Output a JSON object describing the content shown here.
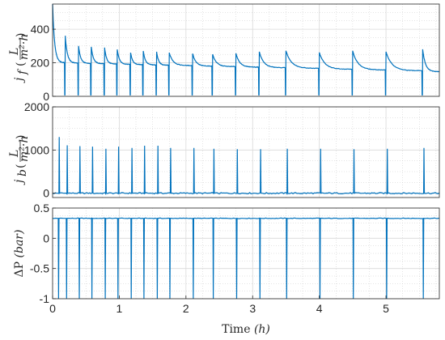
{
  "chart_data": [
    {
      "type": "line",
      "ylabel": "j_f (L/(m²·h))",
      "ylabel_main": "j",
      "ylabel_sub": "f",
      "ylabel_units_num": "L",
      "ylabel_units_den": "m²·h",
      "ylim": [
        0,
        550
      ],
      "yticks": [
        0,
        200,
        400
      ],
      "xlim": [
        0,
        5.8
      ],
      "grid": true,
      "line_color": "#0072BD",
      "cycle_starts": [
        0,
        0.19,
        0.39,
        0.58,
        0.78,
        0.97,
        1.17,
        1.36,
        1.56,
        1.75,
        2.1,
        2.4,
        2.75,
        3.1,
        3.5,
        4.0,
        4.5,
        5.0,
        5.55
      ],
      "cycle_peaks": [
        550,
        360,
        300,
        295,
        290,
        280,
        260,
        270,
        265,
        260,
        255,
        250,
        255,
        265,
        270,
        260,
        270,
        265,
        280
      ],
      "baseline_start": 200,
      "baseline_end": 145
    },
    {
      "type": "line",
      "ylabel": "j_b (L/(m²·h))",
      "ylabel_main": "j",
      "ylabel_sub": "b",
      "ylabel_units_num": "L",
      "ylabel_units_den": "m²·h",
      "ylim": [
        -100,
        2000
      ],
      "yticks": [
        0,
        1000,
        2000
      ],
      "xlim": [
        0,
        5.8
      ],
      "grid": true,
      "line_color": "#0072BD",
      "spike_times": [
        0.1,
        0.22,
        0.41,
        0.6,
        0.8,
        0.99,
        1.19,
        1.38,
        1.58,
        1.77,
        2.12,
        2.42,
        2.77,
        3.12,
        3.52,
        4.02,
        4.52,
        5.02,
        5.57
      ],
      "spike_values": [
        1300,
        1110,
        1090,
        1080,
        1030,
        1080,
        1050,
        1100,
        1100,
        1050,
        1050,
        1030,
        1020,
        1020,
        1030,
        1030,
        1020,
        1030,
        1050
      ],
      "baseline": 0
    },
    {
      "type": "line",
      "ylabel": "ΔP (bar)",
      "ylabel_main": "ΔP",
      "ylabel_units": "bar",
      "ylim": [
        -1,
        0.5
      ],
      "yticks": [
        -1,
        -0.5,
        0,
        0.5
      ],
      "xlim": [
        0,
        5.8
      ],
      "xticks": [
        0,
        1,
        2,
        3,
        4,
        5
      ],
      "xlabel": "Time",
      "xlabel_units": "h",
      "grid": true,
      "line_color": "#0072BD",
      "baseline": 0.33,
      "drop_value": -1,
      "drop_times": [
        0.09,
        0.21,
        0.4,
        0.59,
        0.79,
        0.98,
        1.18,
        1.37,
        1.57,
        1.76,
        2.11,
        2.41,
        2.76,
        3.11,
        3.51,
        4.01,
        4.51,
        5.01,
        5.56
      ]
    }
  ]
}
